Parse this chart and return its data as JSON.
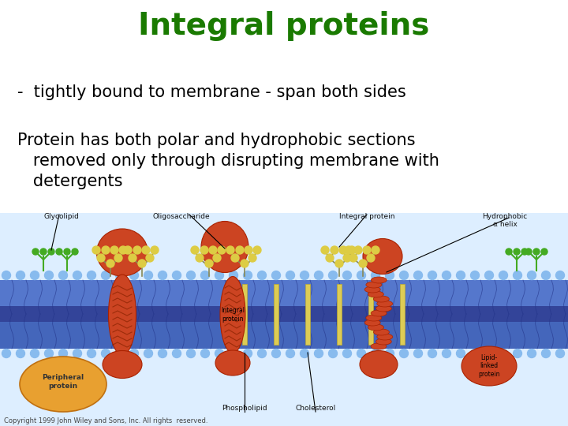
{
  "title": "Integral proteins",
  "title_color": "#1a7a00",
  "title_fontsize": 28,
  "subtitle": "-  tightly bound to membrane - span both sides",
  "subtitle_fontsize": 15,
  "subtitle_color": "#000000",
  "body_lines": [
    "Protein has both polar and hydrophobic sections",
    "   removed only through disrupting membrane with",
    "   detergents"
  ],
  "body_fontsize": 15,
  "body_color": "#000000",
  "copyright": "Copyright 1999 John Wiley and Sons, Inc. All rights  reserved.",
  "copyright_fontsize": 6,
  "copyright_color": "#444444",
  "bg_color": "#ffffff",
  "membrane_bg": "#c8dff5",
  "membrane_outer": "#4a7abf",
  "membrane_inner": "#3a6aaf",
  "membrane_mid": "#2a5a9f",
  "head_color": "#88bbee",
  "protein_color": "#cc4422",
  "protein_edge": "#aa2200",
  "peripheral_color": "#e8a030",
  "glycolipid_color": "#ddcc44",
  "glycolipid_green": "#44aa22",
  "label_color": "#111111",
  "label_fontsize": 6.5
}
